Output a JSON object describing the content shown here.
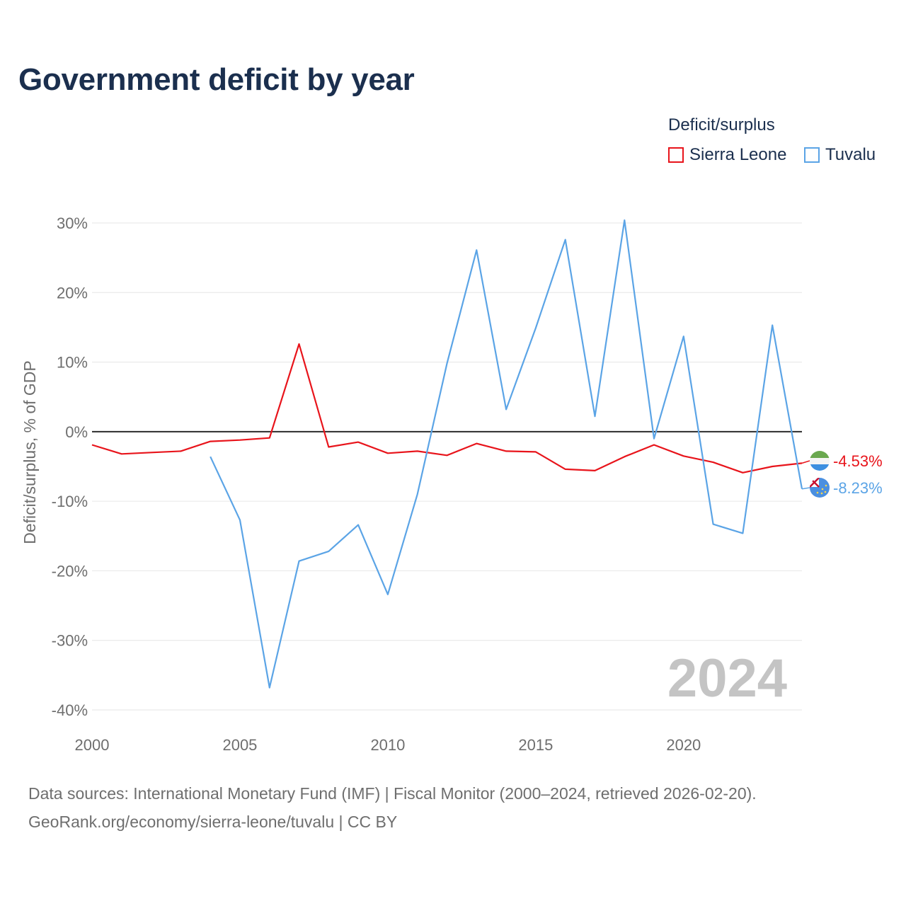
{
  "title": "Government deficit by year",
  "legend": {
    "title": "Deficit/surplus",
    "items": [
      {
        "name": "Sierra Leone",
        "color": "#e8141b"
      },
      {
        "name": "Tuvalu",
        "color": "#5ba4e6"
      }
    ]
  },
  "footer": {
    "line1": "Data sources: International Monetary Fund (IMF) | Fiscal Monitor (2000–2024, retrieved 2026-02-20).",
    "line2": "GeoRank.org/economy/sierra-leone/tuvalu | CC BY"
  },
  "chart_data": {
    "type": "line",
    "title": "Government deficit by year",
    "xlabel": "",
    "ylabel": "Deficit/surplus, % of GDP",
    "xlim": [
      2000,
      2024
    ],
    "ylim": [
      -40,
      30
    ],
    "x_ticks": [
      2000,
      2005,
      2010,
      2015,
      2020
    ],
    "y_ticks": [
      30,
      20,
      10,
      0,
      -10,
      -20,
      -30,
      -40
    ],
    "y_tick_labels": [
      "30%",
      "20%",
      "10%",
      "0%",
      "-10%",
      "-20%",
      "-30%",
      "-40%"
    ],
    "grid": true,
    "zero_line": true,
    "watermark_year": "2024",
    "series": [
      {
        "name": "Sierra Leone",
        "color": "#e8141b",
        "end_label": "-4.53%",
        "flag": "sierra-leone-flag-icon",
        "points": [
          [
            2000,
            -1.9
          ],
          [
            2001,
            -3.2
          ],
          [
            2002,
            -3.0
          ],
          [
            2003,
            -2.8
          ],
          [
            2004,
            -1.4
          ],
          [
            2005,
            -1.2
          ],
          [
            2006,
            -0.9
          ],
          [
            2007,
            12.6
          ],
          [
            2008,
            -2.2
          ],
          [
            2009,
            -1.5
          ],
          [
            2010,
            -3.1
          ],
          [
            2011,
            -2.8
          ],
          [
            2012,
            -3.4
          ],
          [
            2013,
            -1.7
          ],
          [
            2014,
            -2.8
          ],
          [
            2015,
            -2.9
          ],
          [
            2016,
            -5.4
          ],
          [
            2017,
            -5.6
          ],
          [
            2018,
            -3.6
          ],
          [
            2019,
            -1.9
          ],
          [
            2020,
            -3.5
          ],
          [
            2021,
            -4.4
          ],
          [
            2022,
            -5.9
          ],
          [
            2023,
            -5.0
          ],
          [
            2024,
            -4.53
          ]
        ]
      },
      {
        "name": "Tuvalu",
        "color": "#5ba4e6",
        "end_label": "-8.23%",
        "flag": "tuvalu-flag-icon",
        "points": [
          [
            2004,
            -3.6
          ],
          [
            2005,
            -12.7
          ],
          [
            2006,
            -36.8
          ],
          [
            2007,
            -18.6
          ],
          [
            2008,
            -17.2
          ],
          [
            2009,
            -13.4
          ],
          [
            2010,
            -23.4
          ],
          [
            2011,
            -9.0
          ],
          [
            2012,
            9.8
          ],
          [
            2013,
            26.1
          ],
          [
            2014,
            3.2
          ],
          [
            2015,
            14.9
          ],
          [
            2016,
            27.6
          ],
          [
            2017,
            2.2
          ],
          [
            2018,
            30.4
          ],
          [
            2019,
            -1.0
          ],
          [
            2020,
            13.7
          ],
          [
            2021,
            -13.3
          ],
          [
            2022,
            -14.6
          ],
          [
            2023,
            15.3
          ],
          [
            2024,
            -8.23
          ]
        ]
      }
    ]
  }
}
